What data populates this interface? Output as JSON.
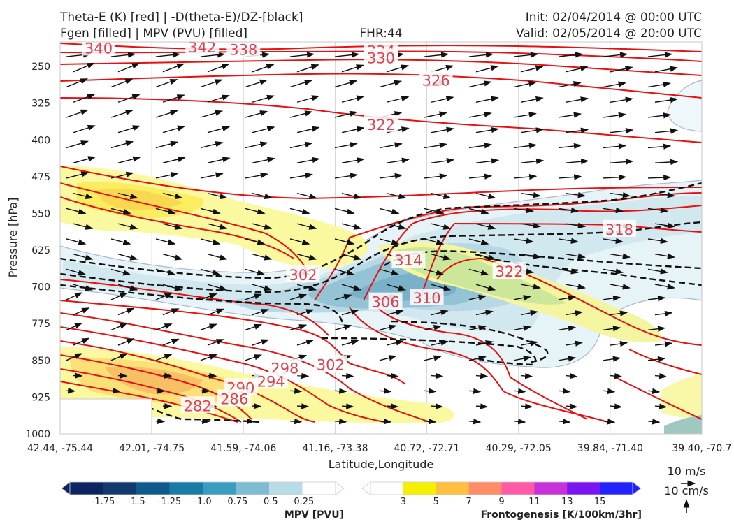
{
  "header": {
    "left_line1": "Theta-E (K) [red] | -D(theta-E)/DZ-[black]",
    "left_line2": "Fgen [filled] | MPV (PVU) [filled]",
    "center": "FHR:44",
    "right_line1": "Init: 02/04/2014 @ 00:00 UTC",
    "right_line2": "Valid: 02/05/2014 @ 20:00 UTC"
  },
  "chart_data": {
    "type": "contour",
    "xlabel": "Latitude,Longitude",
    "ylabel": "Pressure [hPa]",
    "x_ticks": [
      "42.44, -75.44",
      "42.01, -74.75",
      "41.59, -74.06",
      "41.16, -73.38",
      "40.72, -72.71",
      "40.29, -72.05",
      "39.84, -71.40",
      "39.40, -70.7"
    ],
    "y_ticks": [
      250,
      325,
      400,
      475,
      550,
      625,
      700,
      775,
      850,
      925,
      1000
    ],
    "ylim": [
      1000,
      200
    ],
    "theta_e_labels": [
      {
        "value": "340",
        "lon_idx": 0.42,
        "p": 212
      },
      {
        "value": "342",
        "lon_idx": 1.55,
        "p": 210
      },
      {
        "value": "338",
        "lon_idx": 2.0,
        "p": 215
      },
      {
        "value": "334",
        "lon_idx": 3.5,
        "p": 218
      },
      {
        "value": "330",
        "lon_idx": 3.5,
        "p": 232
      },
      {
        "value": "326",
        "lon_idx": 4.1,
        "p": 278
      },
      {
        "value": "322",
        "lon_idx": 3.5,
        "p": 368
      },
      {
        "value": "318",
        "lon_idx": 6.1,
        "p": 582
      },
      {
        "value": "322",
        "lon_idx": 4.9,
        "p": 668
      },
      {
        "value": "314",
        "lon_idx": 3.8,
        "p": 645
      },
      {
        "value": "302",
        "lon_idx": 2.65,
        "p": 675
      },
      {
        "value": "306",
        "lon_idx": 3.55,
        "p": 730
      },
      {
        "value": "310",
        "lon_idx": 4.0,
        "p": 722
      },
      {
        "value": "302",
        "lon_idx": 2.95,
        "p": 858
      },
      {
        "value": "298",
        "lon_idx": 2.45,
        "p": 865
      },
      {
        "value": "294",
        "lon_idx": 2.3,
        "p": 892
      },
      {
        "value": "290",
        "lon_idx": 1.97,
        "p": 905
      },
      {
        "value": "286",
        "lon_idx": 1.9,
        "p": 928
      },
      {
        "value": "282",
        "lon_idx": 1.5,
        "p": 942
      }
    ],
    "mpv_colorbar": {
      "label": "MPV [PVU]",
      "ticks": [
        "-1.75",
        "-1.5",
        "-1.25",
        "-1.0",
        "-0.75",
        "-0.5",
        "-0.25"
      ],
      "colors": [
        "#0c2461",
        "#12386e",
        "#0f5a8c",
        "#1a7ba6",
        "#3a9cc0",
        "#7ebcd4",
        "#b9dbe6",
        "#ffffff"
      ]
    },
    "fgen_colorbar": {
      "label": "Frontogenesis [K/100km/3hr]",
      "ticks": [
        "3",
        "5",
        "7",
        "9",
        "11",
        "13",
        "15"
      ],
      "colors": [
        "#ffffff",
        "#f5f000",
        "#ffc040",
        "#ff8c66",
        "#ff5aa8",
        "#c830d8",
        "#7a14f0",
        "#2222ff"
      ]
    },
    "wind_key": {
      "horizontal": "10 m/s",
      "vertical": "10 cm/s"
    }
  }
}
